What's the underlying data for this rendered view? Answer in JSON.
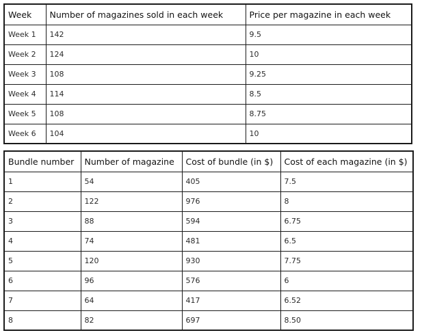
{
  "sales_table": {
    "headers": [
      "Week",
      "Number of magazines sold in each week",
      "Price per magazine in each week"
    ],
    "rows": [
      [
        "Week 1",
        "142",
        "9.5"
      ],
      [
        "Week 2",
        "124",
        "10"
      ],
      [
        "Week 3",
        "108",
        "9.25"
      ],
      [
        "Week 4",
        "114",
        "8.5"
      ],
      [
        "Week 5",
        "108",
        "8.75"
      ],
      [
        "Week 6",
        "104",
        "10"
      ]
    ]
  },
  "bundle_table": {
    "headers": [
      "Bundle number",
      "Number of magazine",
      "Cost of bundle (in $)",
      "Cost of each magazine (in $)"
    ],
    "rows": [
      [
        "1",
        "54",
        "405",
        "7.5"
      ],
      [
        "2",
        "122",
        "976",
        "8"
      ],
      [
        "3",
        "88",
        "594",
        "6.75"
      ],
      [
        "4",
        "74",
        "481",
        "6.5"
      ],
      [
        "5",
        "120",
        "930",
        "7.75"
      ],
      [
        "6",
        "96",
        "576",
        "6"
      ],
      [
        "7",
        "64",
        "417",
        "6.52"
      ],
      [
        "8",
        "82",
        "697",
        "8.50"
      ]
    ]
  }
}
